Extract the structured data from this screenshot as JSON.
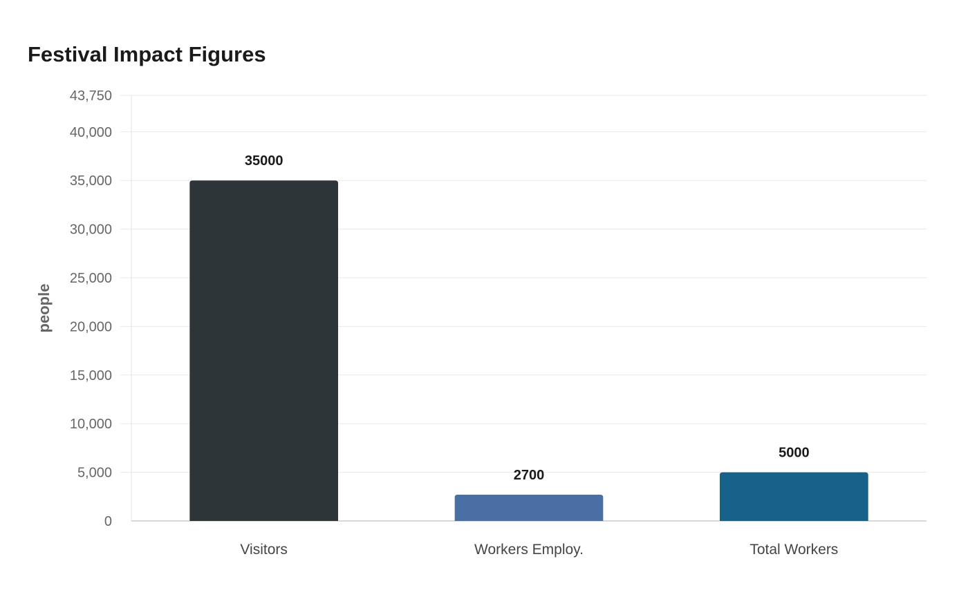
{
  "chart_data": {
    "type": "bar",
    "title": "Festival Impact Figures",
    "xlabel": "",
    "ylabel": "people",
    "categories": [
      "Visitors",
      "Workers Employ.",
      "Total Workers"
    ],
    "values": [
      35000,
      2700,
      5000
    ],
    "value_labels": [
      "35000",
      "2700",
      "5000"
    ],
    "ylim": [
      0,
      43750
    ],
    "y_ticks": [
      0,
      5000,
      10000,
      15000,
      20000,
      25000,
      30000,
      35000,
      40000,
      43750
    ],
    "y_tick_labels": [
      "0",
      "5,000",
      "10,000",
      "15,000",
      "20,000",
      "25,000",
      "30,000",
      "35,000",
      "40,000",
      "43,750"
    ],
    "colors": [
      "#2e3538",
      "#4a6fa5",
      "#16628a"
    ],
    "grid": true,
    "legend": "none"
  }
}
